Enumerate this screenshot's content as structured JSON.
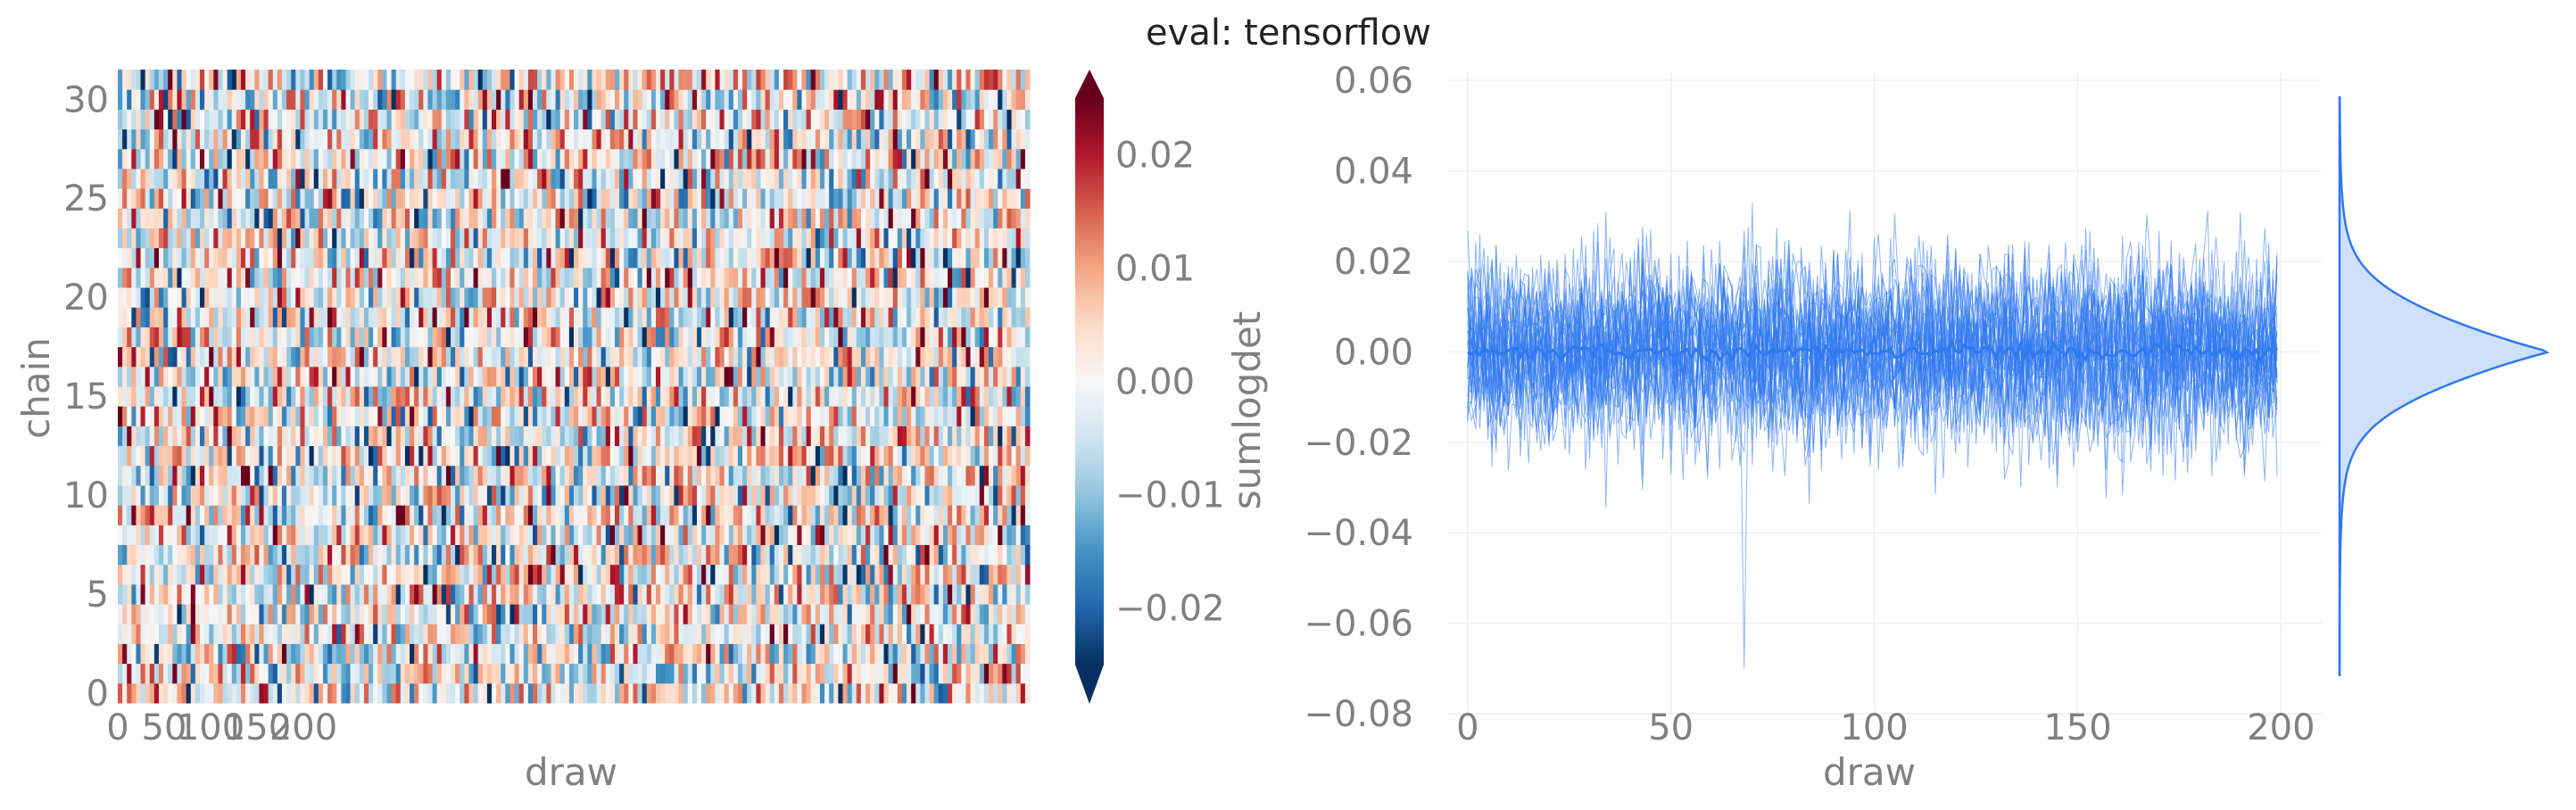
{
  "figure": {
    "title": "eval: tensorflow"
  },
  "chart_data": [
    {
      "type": "heatmap",
      "xlabel": "draw",
      "ylabel": "chain",
      "x_ticks": [
        "0",
        "50",
        "100",
        "150",
        "200"
      ],
      "y_ticks": [
        "0",
        "5",
        "10",
        "15",
        "20",
        "25",
        "30"
      ],
      "n_chains": 32,
      "n_draws": 200,
      "grid": false,
      "colorbar": {
        "label": "sumlogdet",
        "ticks": [
          "−0.02",
          "−0.01",
          "0.00",
          "0.01",
          "0.02"
        ],
        "range": [
          -0.025,
          0.025
        ],
        "colormap": "RdBu_r",
        "stops": [
          "#053061",
          "#2166ac",
          "#4393c3",
          "#92c5de",
          "#d1e5f0",
          "#f7f7f7",
          "#fddbc7",
          "#f4a582",
          "#d6604d",
          "#b2182b",
          "#67001f"
        ]
      },
      "values_description": "noise centered at 0.00, roughly within −0.025 to 0.025"
    },
    {
      "type": "line",
      "xlabel": "draw",
      "ylabel": "",
      "x_ticks": [
        "0",
        "50",
        "100",
        "150",
        "200"
      ],
      "y_ticks": [
        "−0.08",
        "−0.06",
        "−0.04",
        "−0.02",
        "0.00",
        "0.02",
        "0.04",
        "0.06"
      ],
      "xlim": [
        -5,
        210
      ],
      "ylim": [
        -0.08,
        0.062
      ],
      "n_series": 32,
      "series_length": 200,
      "series_mean": 0.0,
      "series_spread": 0.01,
      "extremes": {
        "min": -0.07,
        "min_draw": 68,
        "max": 0.05
      },
      "color": "#2f78f0",
      "grid": true,
      "marginal": {
        "type": "density",
        "peak": 0.0,
        "fill": "#cfe0fb",
        "stroke": "#2f78f0"
      }
    }
  ]
}
